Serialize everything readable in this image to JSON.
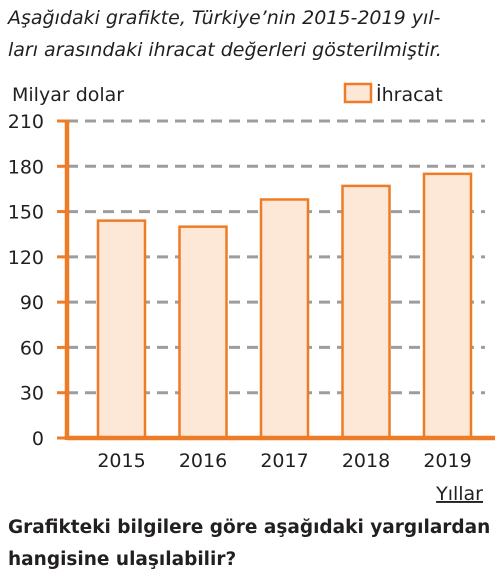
{
  "intro_lines": [
    "Aşağıdaki grafikte, Türkiye’nin 2015-2019 yıl-",
    "ları arasındaki ihracat değerleri gösterilmiştir."
  ],
  "question_lines": [
    "Grafikteki bilgilere göre aşağıdaki yargılardan",
    "hangisine ulaşılabilir?"
  ],
  "chart_data": {
    "type": "bar",
    "categories": [
      "2015",
      "2016",
      "2017",
      "2018",
      "2019"
    ],
    "series": [
      {
        "name": "İhracat",
        "values": [
          144,
          140,
          158,
          167,
          175
        ]
      }
    ],
    "ylabel": "Milyar dolar",
    "xlabel": "Yıllar",
    "ylim": [
      0,
      210
    ],
    "yticks": [
      0,
      30,
      60,
      90,
      120,
      150,
      180,
      210
    ],
    "grid": true,
    "legend": "top-right"
  },
  "colors": {
    "axis": "#ee7b26",
    "bar_fill": "#fde8d8",
    "bar_stroke": "#ee7b26",
    "grid": "#9d9d9d",
    "text": "#231f20"
  }
}
